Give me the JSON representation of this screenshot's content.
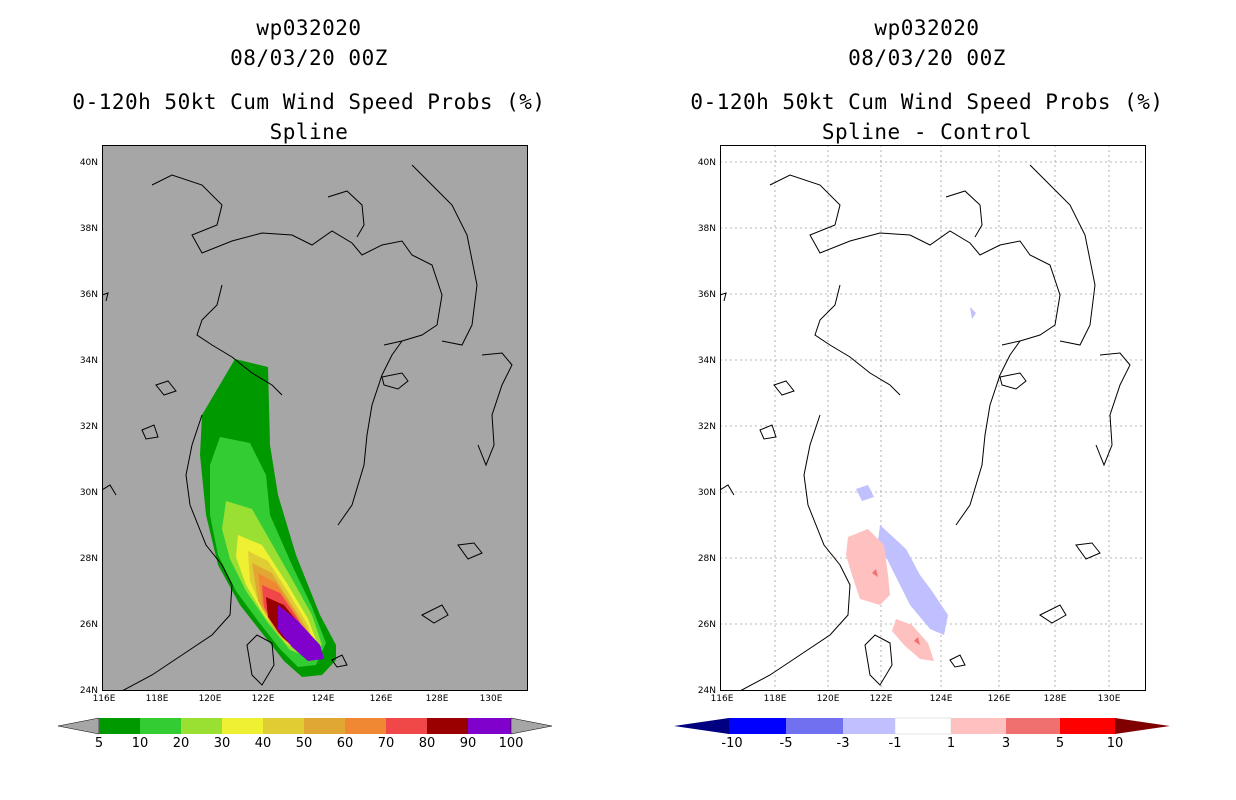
{
  "left": {
    "storm": "wp032020",
    "datetime": "08/03/20 00Z",
    "product": "0-120h 50kt Cum Wind Speed Probs (%)",
    "method": "Spline",
    "lat_labels": [
      "40N",
      "38N",
      "36N",
      "34N",
      "32N",
      "30N",
      "28N",
      "26N",
      "24N"
    ],
    "lon_labels": [
      "116E",
      "118E",
      "120E",
      "122E",
      "124E",
      "126E",
      "128E",
      "130E"
    ],
    "colorbar": {
      "labels": [
        "5",
        "10",
        "20",
        "30",
        "40",
        "50",
        "60",
        "70",
        "80",
        "90",
        "100"
      ],
      "colors": [
        "#009900",
        "#33cc33",
        "#99e033",
        "#f0f033",
        "#e0cc33",
        "#e0a833",
        "#f08833",
        "#f04848",
        "#990000",
        "#8000cc"
      ],
      "under_color": "#a6a6a6",
      "over_color": "#a6a6a6"
    },
    "background": "#a6a6a6"
  },
  "right": {
    "storm": "wp032020",
    "datetime": "08/03/20 00Z",
    "product": "0-120h 50kt Cum Wind Speed Probs (%)",
    "method": "Spline - Control",
    "lat_labels": [
      "40N",
      "38N",
      "36N",
      "34N",
      "32N",
      "30N",
      "28N",
      "26N",
      "24N"
    ],
    "lon_labels": [
      "116E",
      "118E",
      "120E",
      "122E",
      "124E",
      "126E",
      "128E",
      "130E"
    ],
    "colorbar": {
      "labels": [
        "-10",
        "-5",
        "-3",
        "-1",
        "1",
        "3",
        "5",
        "10"
      ],
      "colors": [
        "#0000a0",
        "#0000ff",
        "#7070f0",
        "#c0c0ff",
        "#ffffff",
        "#ffc0c0",
        "#f07070",
        "#ff0000",
        "#a00000"
      ],
      "under_color": "#000080",
      "over_color": "#800000"
    },
    "background": "#ffffff"
  }
}
